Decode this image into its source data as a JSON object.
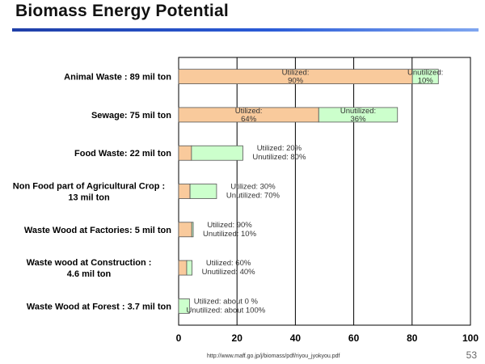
{
  "slide": {
    "title": "Biomass Energy Potential",
    "source_url": "http://www.maff.go.jp/j/biomass/pdf/riyou_jyokyou.pdf",
    "page_number": "53"
  },
  "colors": {
    "utilized": "#f9ca9c",
    "unutilized": "#ccffcc",
    "bar_border": "#555555",
    "grid": "#000000"
  },
  "chart_data": {
    "type": "bar",
    "orientation": "horizontal",
    "stacked": true,
    "xlim": [
      0,
      100
    ],
    "xticks": [
      0,
      20,
      40,
      60,
      80,
      100
    ],
    "grid": true,
    "categories": [
      [
        "Animal Waste : 89 mil ton"
      ],
      [
        "Sewage: 75 mil ton"
      ],
      [
        "Food Waste:  22 mil ton"
      ],
      [
        "Non Food part of Agricultural Crop :",
        "13 mil ton"
      ],
      [
        "Waste Wood at Factories: 5 mil ton"
      ],
      [
        "Waste wood at Construction :",
        "4.6 mil ton"
      ],
      [
        "Waste Wood at Forest : 3.7 mil ton"
      ]
    ],
    "series": [
      {
        "key": "utilized",
        "values": [
          80.1,
          48,
          4.4,
          3.9,
          4.5,
          2.76,
          0
        ]
      },
      {
        "key": "unutilized",
        "values": [
          8.9,
          27,
          17.6,
          9.1,
          0.5,
          1.84,
          3.7
        ]
      }
    ],
    "annotations": [
      {
        "inside": true,
        "utilized": [
          "Utilized:",
          "90%"
        ],
        "unutilized": [
          "Unutilized:",
          "10%"
        ]
      },
      {
        "inside": true,
        "utilized": [
          "Utilized:",
          "64%"
        ],
        "unutilized": [
          "Unutilized:",
          "36%"
        ]
      },
      {
        "inside": false,
        "lines": [
          "Utilized: 20%",
          "Unutilized: 80%"
        ]
      },
      {
        "inside": false,
        "lines": [
          "Utilized: 30%",
          "Unutilized: 70%"
        ]
      },
      {
        "inside": false,
        "lines": [
          "Utilized: 90%",
          "Unutilized: 10%"
        ]
      },
      {
        "inside": false,
        "lines": [
          "Utilized: 60%",
          "Unutilized: 40%"
        ]
      },
      {
        "inside": false,
        "lines": [
          "Utilized: about 0 %",
          "Unutilized: about 100%"
        ]
      }
    ]
  }
}
